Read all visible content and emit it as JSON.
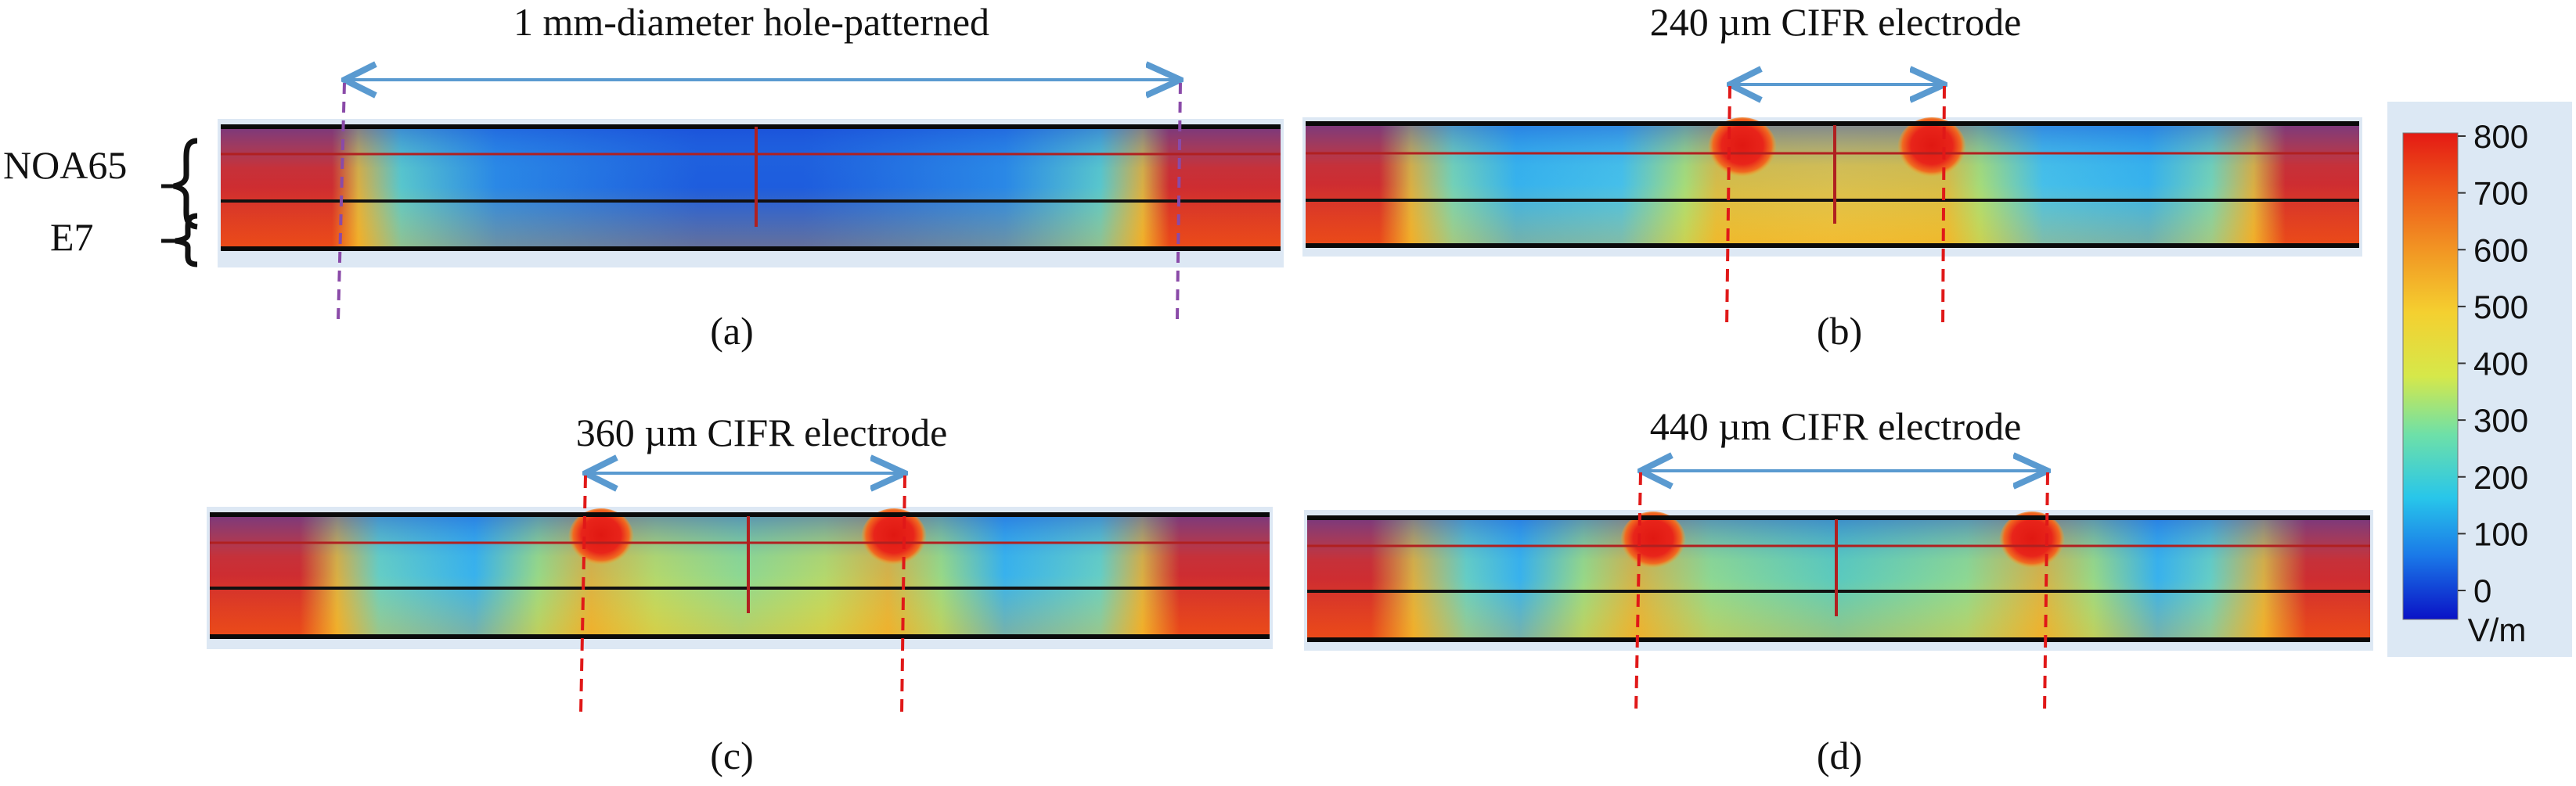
{
  "layer_labels": {
    "top": "NOA65",
    "bottom": "E7"
  },
  "panels": [
    {
      "id": "a",
      "title": "1 mm-diameter hole-patterned",
      "caption": "(a)",
      "spot_count": 0
    },
    {
      "id": "b",
      "title": "240 µm CIFR electrode",
      "caption": "(b)",
      "spot_count": 2
    },
    {
      "id": "c",
      "title": "360 µm CIFR electrode",
      "caption": "(c)",
      "spot_count": 2
    },
    {
      "id": "d",
      "title": "440 µm CIFR electrode",
      "caption": "(d)",
      "spot_count": 2
    }
  ],
  "colorbar": {
    "ticks": [
      "800",
      "700",
      "600",
      "500",
      "400",
      "300",
      "200",
      "100",
      "0"
    ],
    "unit": "V/m",
    "range": [
      0,
      800
    ],
    "colors": [
      "#0a10c8",
      "#1e6ee6",
      "#1ec8ee",
      "#6ee4aa",
      "#e8e840",
      "#f0b428",
      "#ee7a1e",
      "#e81e14"
    ]
  },
  "colors": {
    "dimension_arrow": "#5a9ad0",
    "electrode_edge_purple": "#8a4aa8",
    "electrode_edge_red": "#e01818",
    "field_high": "#e81e14",
    "field_low": "#1c50dc",
    "field_mid": "#f0b428"
  }
}
